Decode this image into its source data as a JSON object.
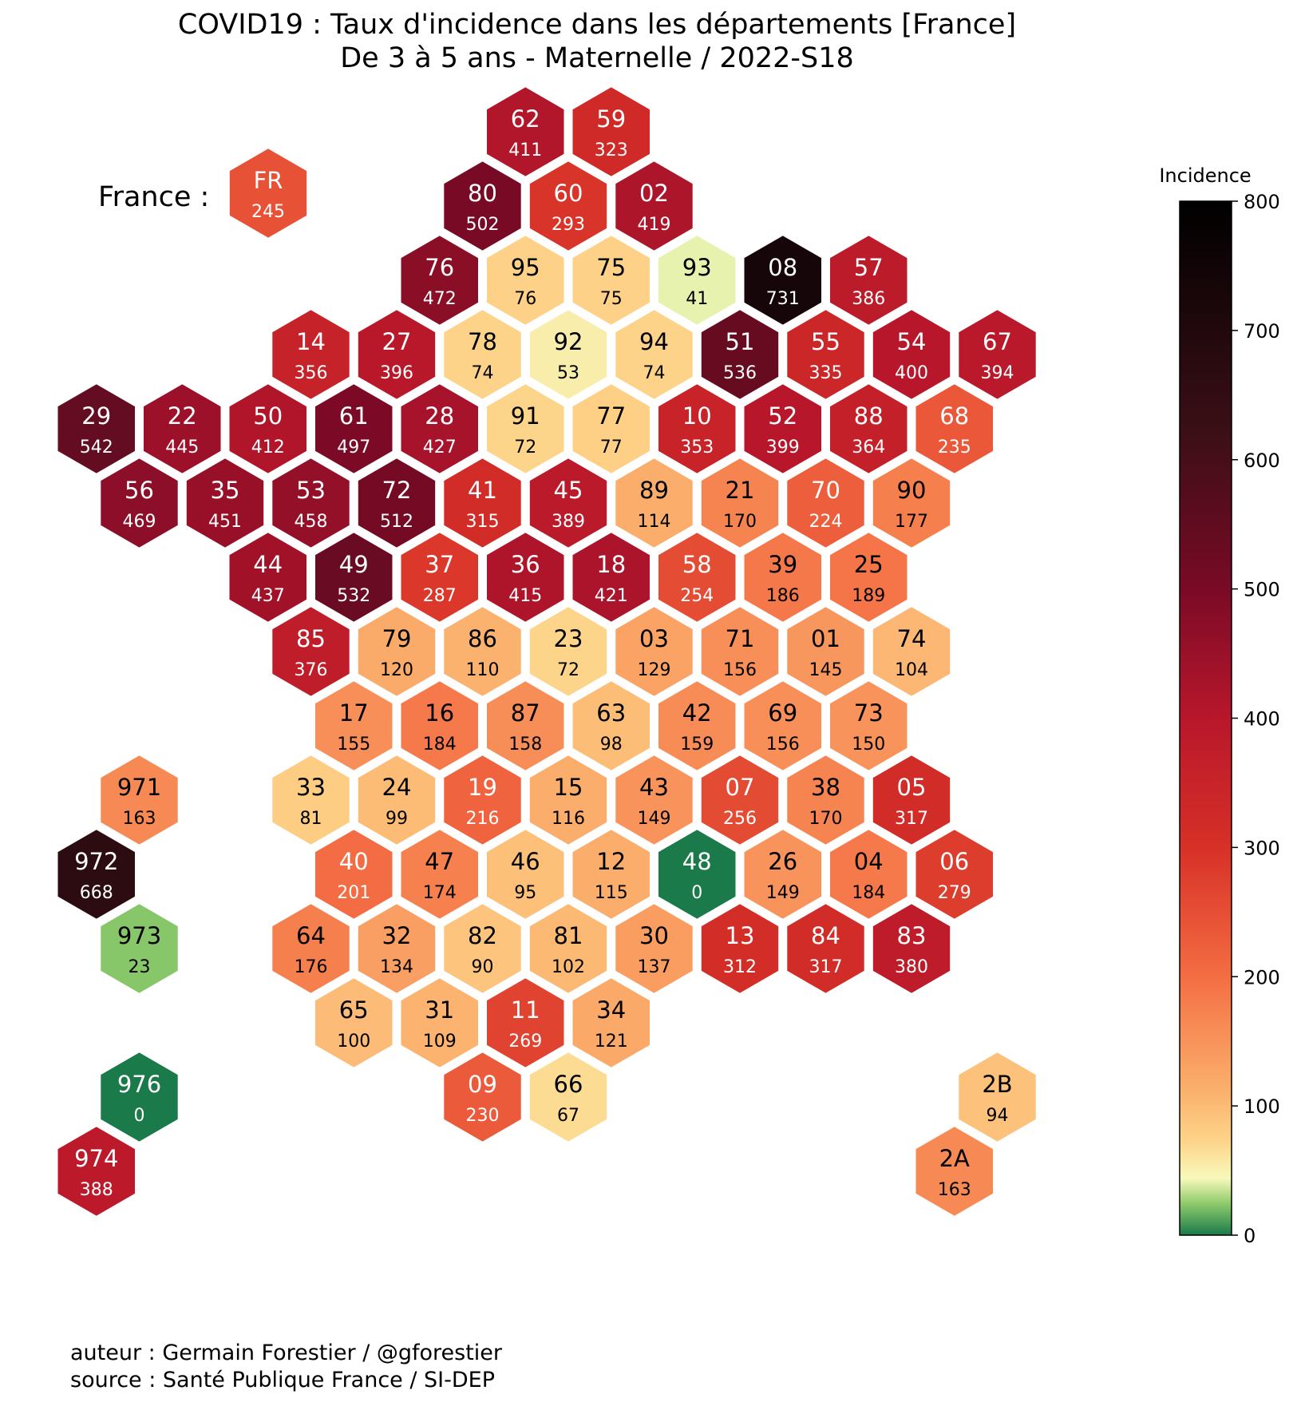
{
  "title": {
    "line1": "COVID19 : Taux d'incidence dans les départements [France]",
    "line2": "De 3 à 5 ans - Maternelle / 2022-S18"
  },
  "france_label": "France :",
  "footer": {
    "author": "auteur : Germain Forestier / @gforestier",
    "source": "source : Santé Publique France / SI-DEP"
  },
  "colorbar": {
    "title": "Incidence",
    "min": 0,
    "max": 800,
    "ticks": [
      "0",
      "100",
      "200",
      "300",
      "400",
      "500",
      "600",
      "700",
      "800"
    ],
    "colormap": "RdYlGn_r"
  },
  "departments": [
    {
      "code": "FR",
      "value": 245,
      "row": 0,
      "col": 2.5
    },
    {
      "code": "62",
      "value": 411,
      "row": -1,
      "col": 5.5
    },
    {
      "code": "59",
      "value": 323,
      "row": -1,
      "col": 6.5
    },
    {
      "code": "80",
      "value": 502,
      "row": 0,
      "col": 5
    },
    {
      "code": "60",
      "value": 293,
      "row": 0,
      "col": 6
    },
    {
      "code": "02",
      "value": 419,
      "row": 0,
      "col": 7
    },
    {
      "code": "76",
      "value": 472,
      "row": 1,
      "col": 4.5
    },
    {
      "code": "95",
      "value": 76,
      "row": 1,
      "col": 5.5
    },
    {
      "code": "75",
      "value": 75,
      "row": 1,
      "col": 6.5
    },
    {
      "code": "93",
      "value": 41,
      "row": 1,
      "col": 7.5
    },
    {
      "code": "08",
      "value": 731,
      "row": 1,
      "col": 8.5
    },
    {
      "code": "57",
      "value": 386,
      "row": 1,
      "col": 9.5
    },
    {
      "code": "14",
      "value": 356,
      "row": 2,
      "col": 3
    },
    {
      "code": "27",
      "value": 396,
      "row": 2,
      "col": 4
    },
    {
      "code": "78",
      "value": 74,
      "row": 2,
      "col": 5
    },
    {
      "code": "92",
      "value": 53,
      "row": 2,
      "col": 6
    },
    {
      "code": "94",
      "value": 74,
      "row": 2,
      "col": 7
    },
    {
      "code": "51",
      "value": 536,
      "row": 2,
      "col": 8
    },
    {
      "code": "55",
      "value": 335,
      "row": 2,
      "col": 9
    },
    {
      "code": "54",
      "value": 400,
      "row": 2,
      "col": 10
    },
    {
      "code": "67",
      "value": 394,
      "row": 2,
      "col": 11
    },
    {
      "code": "29",
      "value": 542,
      "row": 3,
      "col": 0.5
    },
    {
      "code": "22",
      "value": 445,
      "row": 3,
      "col": 1.5
    },
    {
      "code": "50",
      "value": 412,
      "row": 3,
      "col": 2.5
    },
    {
      "code": "61",
      "value": 497,
      "row": 3,
      "col": 3.5
    },
    {
      "code": "28",
      "value": 427,
      "row": 3,
      "col": 4.5
    },
    {
      "code": "91",
      "value": 72,
      "row": 3,
      "col": 5.5
    },
    {
      "code": "77",
      "value": 77,
      "row": 3,
      "col": 6.5
    },
    {
      "code": "10",
      "value": 353,
      "row": 3,
      "col": 7.5
    },
    {
      "code": "52",
      "value": 399,
      "row": 3,
      "col": 8.5
    },
    {
      "code": "88",
      "value": 364,
      "row": 3,
      "col": 9.5
    },
    {
      "code": "68",
      "value": 235,
      "row": 3,
      "col": 10.5
    },
    {
      "code": "56",
      "value": 469,
      "row": 4,
      "col": 1
    },
    {
      "code": "35",
      "value": 451,
      "row": 4,
      "col": 2
    },
    {
      "code": "53",
      "value": 458,
      "row": 4,
      "col": 3
    },
    {
      "code": "72",
      "value": 512,
      "row": 4,
      "col": 4
    },
    {
      "code": "41",
      "value": 315,
      "row": 4,
      "col": 5
    },
    {
      "code": "45",
      "value": 389,
      "row": 4,
      "col": 6
    },
    {
      "code": "89",
      "value": 114,
      "row": 4,
      "col": 7
    },
    {
      "code": "21",
      "value": 170,
      "row": 4,
      "col": 8
    },
    {
      "code": "70",
      "value": 224,
      "row": 4,
      "col": 9
    },
    {
      "code": "90",
      "value": 177,
      "row": 4,
      "col": 10
    },
    {
      "code": "44",
      "value": 437,
      "row": 5,
      "col": 2.5
    },
    {
      "code": "49",
      "value": 532,
      "row": 5,
      "col": 3.5
    },
    {
      "code": "37",
      "value": 287,
      "row": 5,
      "col": 4.5
    },
    {
      "code": "36",
      "value": 415,
      "row": 5,
      "col": 5.5
    },
    {
      "code": "18",
      "value": 421,
      "row": 5,
      "col": 6.5
    },
    {
      "code": "58",
      "value": 254,
      "row": 5,
      "col": 7.5
    },
    {
      "code": "39",
      "value": 186,
      "row": 5,
      "col": 8.5
    },
    {
      "code": "25",
      "value": 189,
      "row": 5,
      "col": 9.5
    },
    {
      "code": "85",
      "value": 376,
      "row": 6,
      "col": 3
    },
    {
      "code": "79",
      "value": 120,
      "row": 6,
      "col": 4
    },
    {
      "code": "86",
      "value": 110,
      "row": 6,
      "col": 5
    },
    {
      "code": "23",
      "value": 72,
      "row": 6,
      "col": 6
    },
    {
      "code": "03",
      "value": 129,
      "row": 6,
      "col": 7
    },
    {
      "code": "71",
      "value": 156,
      "row": 6,
      "col": 8
    },
    {
      "code": "01",
      "value": 145,
      "row": 6,
      "col": 9
    },
    {
      "code": "74",
      "value": 104,
      "row": 6,
      "col": 10
    },
    {
      "code": "17",
      "value": 155,
      "row": 7,
      "col": 3.5
    },
    {
      "code": "16",
      "value": 184,
      "row": 7,
      "col": 4.5
    },
    {
      "code": "87",
      "value": 158,
      "row": 7,
      "col": 5.5
    },
    {
      "code": "63",
      "value": 98,
      "row": 7,
      "col": 6.5
    },
    {
      "code": "42",
      "value": 159,
      "row": 7,
      "col": 7.5
    },
    {
      "code": "69",
      "value": 156,
      "row": 7,
      "col": 8.5
    },
    {
      "code": "73",
      "value": 150,
      "row": 7,
      "col": 9.5
    },
    {
      "code": "971",
      "value": 163,
      "row": 8,
      "col": 1
    },
    {
      "code": "33",
      "value": 81,
      "row": 8,
      "col": 3
    },
    {
      "code": "24",
      "value": 99,
      "row": 8,
      "col": 4
    },
    {
      "code": "19",
      "value": 216,
      "row": 8,
      "col": 5
    },
    {
      "code": "15",
      "value": 116,
      "row": 8,
      "col": 6
    },
    {
      "code": "43",
      "value": 149,
      "row": 8,
      "col": 7
    },
    {
      "code": "07",
      "value": 256,
      "row": 8,
      "col": 8
    },
    {
      "code": "38",
      "value": 170,
      "row": 8,
      "col": 9
    },
    {
      "code": "05",
      "value": 317,
      "row": 8,
      "col": 10
    },
    {
      "code": "972",
      "value": 668,
      "row": 9,
      "col": 0.5
    },
    {
      "code": "40",
      "value": 201,
      "row": 9,
      "col": 3.5
    },
    {
      "code": "47",
      "value": 174,
      "row": 9,
      "col": 4.5
    },
    {
      "code": "46",
      "value": 95,
      "row": 9,
      "col": 5.5
    },
    {
      "code": "12",
      "value": 115,
      "row": 9,
      "col": 6.5
    },
    {
      "code": "48",
      "value": 0,
      "row": 9,
      "col": 7.5
    },
    {
      "code": "26",
      "value": 149,
      "row": 9,
      "col": 8.5
    },
    {
      "code": "04",
      "value": 184,
      "row": 9,
      "col": 9.5
    },
    {
      "code": "06",
      "value": 279,
      "row": 9,
      "col": 10.5
    },
    {
      "code": "973",
      "value": 23,
      "row": 10,
      "col": 1
    },
    {
      "code": "64",
      "value": 176,
      "row": 10,
      "col": 3
    },
    {
      "code": "32",
      "value": 134,
      "row": 10,
      "col": 4
    },
    {
      "code": "82",
      "value": 90,
      "row": 10,
      "col": 5
    },
    {
      "code": "81",
      "value": 102,
      "row": 10,
      "col": 6
    },
    {
      "code": "30",
      "value": 137,
      "row": 10,
      "col": 7
    },
    {
      "code": "13",
      "value": 312,
      "row": 10,
      "col": 8
    },
    {
      "code": "84",
      "value": 317,
      "row": 10,
      "col": 9
    },
    {
      "code": "83",
      "value": 380,
      "row": 10,
      "col": 10
    },
    {
      "code": "65",
      "value": 100,
      "row": 11,
      "col": 3.5
    },
    {
      "code": "31",
      "value": 109,
      "row": 11,
      "col": 4.5
    },
    {
      "code": "11",
      "value": 269,
      "row": 11,
      "col": 5.5
    },
    {
      "code": "34",
      "value": 121,
      "row": 11,
      "col": 6.5
    },
    {
      "code": "976",
      "value": 0,
      "row": 12,
      "col": 1
    },
    {
      "code": "09",
      "value": 230,
      "row": 12,
      "col": 5
    },
    {
      "code": "66",
      "value": 67,
      "row": 12,
      "col": 6
    },
    {
      "code": "2B",
      "value": 94,
      "row": 12,
      "col": 11
    },
    {
      "code": "974",
      "value": 388,
      "row": 13,
      "col": 0.5
    },
    {
      "code": "2A",
      "value": 163,
      "row": 13,
      "col": 10.5
    }
  ]
}
